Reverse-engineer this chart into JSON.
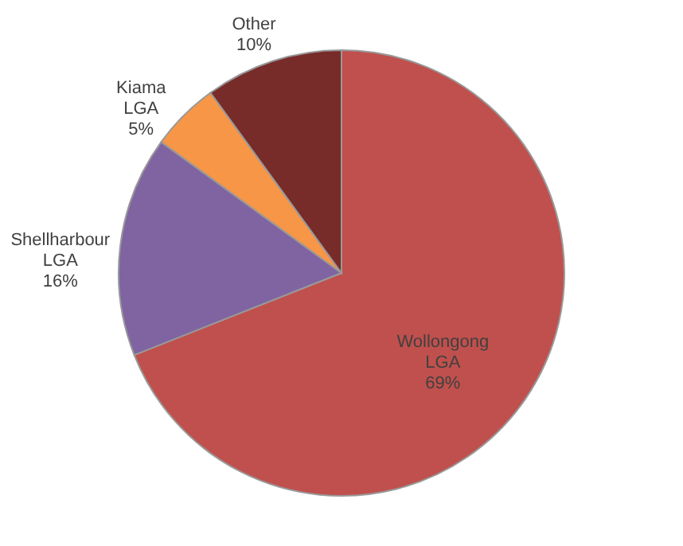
{
  "chart_data": {
    "type": "pie",
    "categories": [
      "Wollongong LGA",
      "Shellharbour LGA",
      "Kiama LGA",
      "Other"
    ],
    "values": [
      69,
      16,
      5,
      10
    ],
    "colors": [
      "#c0504d",
      "#8064a2",
      "#f79646",
      "#772c2a"
    ],
    "value_labels": [
      "69%",
      "16%",
      "5%",
      "10%"
    ],
    "legend": false
  }
}
